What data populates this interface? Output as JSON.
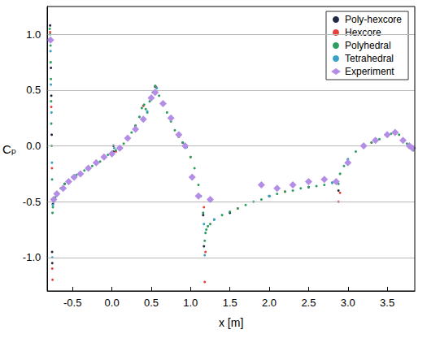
{
  "chart_data": {
    "type": "scatter",
    "x_label": "x [m]",
    "y_label": "Cₚ",
    "xlim": [
      -0.82,
      3.85
    ],
    "ylim": [
      -1.3,
      1.25
    ],
    "xticks": [
      -0.5,
      {
        "value": 0,
        "label": "0.0"
      },
      0.5,
      {
        "value": 1,
        "label": "1.0"
      },
      1.5,
      {
        "value": 2,
        "label": "2.0"
      },
      2.5,
      {
        "value": 3,
        "label": "3.0"
      },
      3.5
    ],
    "yticks": [
      {
        "value": -1,
        "label": "-1.0"
      },
      -0.5,
      {
        "value": 0,
        "label": "0.0"
      },
      0.5,
      {
        "value": 1,
        "label": "1.0"
      }
    ],
    "grid": true,
    "legend": "upper right",
    "series": [
      {
        "name": "Poly-hexcore",
        "color": "#1f2a44",
        "marker": "circle",
        "x": [
          -0.785,
          -0.775,
          -0.77,
          -0.765,
          -0.76,
          -0.758,
          -0.75,
          -0.6,
          -0.3,
          0.0,
          0.02,
          0.02,
          0.3,
          0.55,
          0.9,
          1.16,
          1.17,
          1.5,
          2.0,
          2.5,
          2.88,
          3.2,
          3.6,
          3.8
        ],
        "values": [
          1.08,
          0.7,
          0.45,
          0.1,
          -0.95,
          -1.05,
          -0.52,
          -0.34,
          -0.2,
          -0.07,
          0.0,
          -0.05,
          0.18,
          0.53,
          0.03,
          -0.62,
          -0.9,
          -0.6,
          -0.45,
          -0.37,
          -0.4,
          0.0,
          0.12,
          -0.02
        ]
      },
      {
        "name": "Hexcore",
        "color": "#e8403a",
        "marker": "circle",
        "x": [
          -0.785,
          -0.77,
          -0.762,
          -0.758,
          -0.755,
          -0.7,
          -0.3,
          0.05,
          0.4,
          0.56,
          1.0,
          1.17,
          1.18,
          1.19,
          1.6,
          2.2,
          2.88,
          2.9,
          3.3,
          3.7
        ],
        "values": [
          1.02,
          0.35,
          -0.2,
          -1.1,
          -1.2,
          -0.42,
          -0.2,
          -0.05,
          0.36,
          0.53,
          -0.1,
          -0.55,
          -1.22,
          -0.95,
          -0.56,
          -0.41,
          -0.5,
          -0.42,
          0.03,
          0.06
        ]
      },
      {
        "name": "Polyhedral",
        "color": "#2e9e5e",
        "marker": "circle",
        "x": [
          -0.79,
          -0.785,
          -0.78,
          -0.778,
          -0.775,
          -0.772,
          -0.77,
          -0.765,
          -0.76,
          -0.755,
          -0.75,
          -0.74,
          -0.72,
          -0.7,
          -0.65,
          -0.6,
          -0.55,
          -0.5,
          -0.45,
          -0.4,
          -0.35,
          -0.3,
          -0.25,
          -0.2,
          -0.15,
          -0.1,
          -0.05,
          0.0,
          0.05,
          0.1,
          0.15,
          0.2,
          0.25,
          0.3,
          0.35,
          0.38,
          0.41,
          0.43,
          0.45,
          0.48,
          0.52,
          0.55,
          0.57,
          0.6,
          0.65,
          0.7,
          0.75,
          0.8,
          0.85,
          0.9,
          0.95,
          1.0,
          1.05,
          1.1,
          1.13,
          1.16,
          1.18,
          1.19,
          1.2,
          1.22,
          1.25,
          1.3,
          1.4,
          1.5,
          1.6,
          1.7,
          1.8,
          1.9,
          2.0,
          2.1,
          2.2,
          2.3,
          2.4,
          2.5,
          2.6,
          2.7,
          2.8,
          2.85,
          2.88,
          2.9,
          2.95,
          3.0,
          3.1,
          3.2,
          3.3,
          3.4,
          3.5,
          3.55,
          3.6,
          3.65,
          3.7,
          3.75,
          3.8,
          3.83
        ],
        "values": [
          1.05,
          1.0,
          0.9,
          0.75,
          0.6,
          0.4,
          0.2,
          0.0,
          -0.3,
          -0.6,
          -0.55,
          -0.5,
          -0.46,
          -0.42,
          -0.38,
          -0.34,
          -0.31,
          -0.28,
          -0.26,
          -0.24,
          -0.22,
          -0.2,
          -0.18,
          -0.16,
          -0.14,
          -0.1,
          -0.08,
          -0.07,
          -0.04,
          -0.02,
          0.02,
          0.06,
          0.12,
          0.18,
          0.26,
          0.34,
          0.37,
          0.33,
          0.3,
          0.4,
          0.48,
          0.54,
          0.52,
          0.45,
          0.38,
          0.3,
          0.22,
          0.14,
          0.08,
          0.03,
          -0.01,
          -0.1,
          -0.2,
          -0.35,
          -0.45,
          -0.6,
          -0.85,
          -0.78,
          -0.75,
          -0.72,
          -0.7,
          -0.66,
          -0.62,
          -0.59,
          -0.56,
          -0.53,
          -0.5,
          -0.48,
          -0.45,
          -0.43,
          -0.41,
          -0.4,
          -0.38,
          -0.37,
          -0.36,
          -0.35,
          -0.33,
          -0.32,
          -0.34,
          -0.25,
          -0.18,
          -0.12,
          -0.05,
          0.0,
          0.03,
          0.06,
          0.09,
          0.11,
          0.12,
          0.1,
          0.06,
          0.02,
          -0.02,
          -0.04
        ]
      },
      {
        "name": "Tetrahedral",
        "color": "#3aa0c8",
        "marker": "circle",
        "x": [
          -0.78,
          -0.775,
          -0.768,
          -0.762,
          -0.758,
          -0.75,
          -0.5,
          0.0,
          0.03,
          0.45,
          0.57,
          0.95,
          1.17,
          1.18,
          1.3,
          2.0,
          2.8,
          3.0,
          3.5,
          3.82
        ],
        "values": [
          0.85,
          0.55,
          0.3,
          -0.15,
          -1.0,
          -0.53,
          -0.28,
          -0.06,
          -0.02,
          0.31,
          0.52,
          -0.01,
          -0.7,
          -0.98,
          -0.66,
          -0.45,
          -0.33,
          -0.12,
          0.09,
          -0.03
        ]
      },
      {
        "name": "Experiment",
        "color": "#b48ee6",
        "marker": "diamond",
        "x": [
          -0.78,
          -0.74,
          -0.7,
          -0.62,
          -0.55,
          -0.48,
          -0.4,
          -0.3,
          -0.2,
          -0.1,
          0.0,
          0.1,
          0.2,
          0.3,
          0.4,
          0.5,
          0.55,
          0.65,
          0.75,
          0.85,
          0.93,
          1.02,
          1.1,
          1.25,
          1.9,
          2.1,
          2.3,
          2.5,
          2.7,
          2.85,
          3.0,
          3.2,
          3.35,
          3.5,
          3.6,
          3.7,
          3.78,
          3.82
        ],
        "values": [
          0.95,
          -0.48,
          -0.43,
          -0.38,
          -0.32,
          -0.28,
          -0.25,
          -0.2,
          -0.15,
          -0.1,
          -0.07,
          -0.02,
          0.07,
          0.15,
          0.24,
          0.43,
          0.48,
          0.38,
          0.25,
          0.1,
          0.0,
          -0.28,
          -0.45,
          -0.48,
          -0.35,
          -0.38,
          -0.35,
          -0.32,
          -0.3,
          -0.32,
          -0.15,
          0.0,
          0.05,
          0.1,
          0.12,
          0.05,
          0.0,
          -0.02
        ]
      }
    ]
  }
}
